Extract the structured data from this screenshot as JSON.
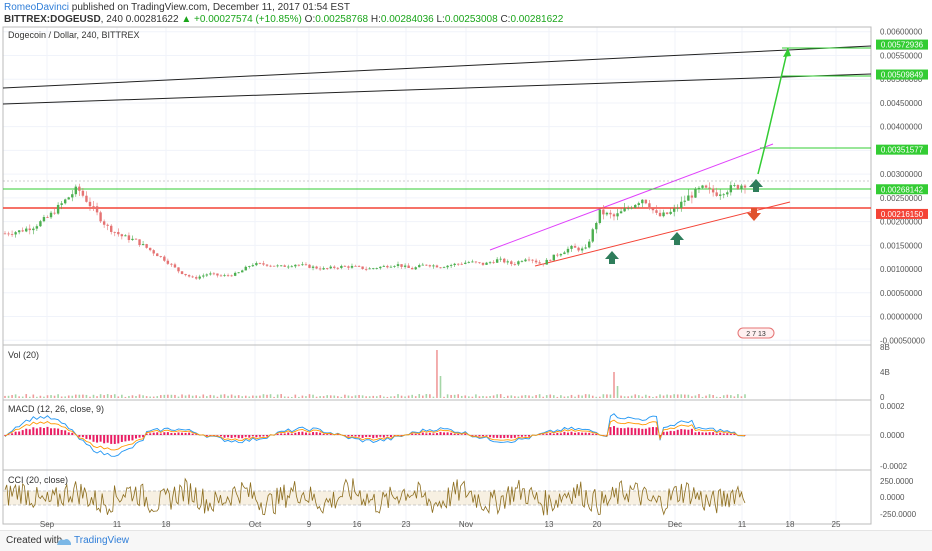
{
  "header": {
    "author": "RomeoDavinci",
    "published": " published on TradingView.com, December 11, 2017 01:54 EST",
    "symbol": "BITTREX:DOGEUSD",
    "interval": "240",
    "last": "0.00281622",
    "change": "+0.00027574 (+10.85%)",
    "open_label": "O:",
    "open": "0.00258768",
    "high_label": "H:",
    "high": "0.00284036",
    "low_label": "L:",
    "low": "0.00253008",
    "close_label": "C:",
    "close": "0.00281622"
  },
  "pane_titles": {
    "main": "Dogecoin / Dollar, 240, BITTREX",
    "vol": "Vol (20)",
    "macd": "MACD (12, 26, close, 9)",
    "cci": "CCI (20, close)"
  },
  "footer": {
    "created_with": "Created with",
    "brand": "TradingView"
  },
  "colors": {
    "up": "#4caf50",
    "down": "#e57373",
    "accent": "#2f7ed8",
    "magenta": "#e040fb",
    "red": "#f44336",
    "green": "#33cc33"
  },
  "chart_data": {
    "type": "line",
    "title": "Dogecoin / Dollar, 240, BITTREX",
    "x_ticks": [
      "Sep",
      "11",
      "18",
      "Oct",
      "9",
      "16",
      "23",
      "Nov",
      "13",
      "20",
      "Dec",
      "11",
      "18",
      "25"
    ],
    "price_axis": {
      "ticks": [
        "0.00600000",
        "0.00550000",
        "0.00500000",
        "0.00450000",
        "0.00400000",
        "0.00350000",
        "0.00300000",
        "0.00250000",
        "0.00200000",
        "0.00150000",
        "0.00100000",
        "0.00050000",
        "0.00000000",
        "-0.00050000"
      ],
      "ylim": [
        -0.0006,
        0.0061
      ]
    },
    "price_labels": [
      {
        "text": "0.00572936",
        "value": 0.00572936,
        "color": "#33cc33"
      },
      {
        "text": "0.00509849",
        "value": 0.00509849,
        "color": "#33cc33"
      },
      {
        "text": "0.00351577",
        "value": 0.00351577,
        "color": "#33cc33"
      },
      {
        "text": "0.00268142",
        "value": 0.00268142,
        "color": "#33cc33"
      },
      {
        "text": "0.00216150",
        "value": 0.0021615,
        "color": "#f44336"
      }
    ],
    "series": [
      {
        "values": [
          0.00175,
          0.0018,
          0.0019,
          0.0021,
          0.0024,
          0.0027,
          0.0023,
          0.0019,
          0.0017,
          0.0016,
          0.0014,
          0.0012,
          0.00095,
          0.0008,
          0.0009,
          0.00085,
          0.0009,
          0.0011,
          0.0011,
          0.00105,
          0.0011,
          0.00105,
          0.001,
          0.00105,
          0.00105,
          0.001,
          0.00105,
          0.0011,
          0.001,
          0.0011,
          0.00105,
          0.0011,
          0.00115,
          0.0011,
          0.0012,
          0.0011,
          0.00125,
          0.0011,
          0.0013,
          0.00145,
          0.0014,
          0.0022,
          0.0021,
          0.0023,
          0.0025,
          0.0021,
          0.0022,
          0.0025,
          0.0027,
          0.0026,
          0.0027,
          0.0028
        ]
      }
    ],
    "volume_axis": {
      "ticks": [
        "8B",
        "4B",
        "0"
      ]
    },
    "macd_axis": {
      "ticks": [
        "0.0002",
        "0.0000",
        "-0.0002"
      ]
    },
    "cci_axis": {
      "ticks": [
        "250.0000",
        "0.0000",
        "-250.0000"
      ]
    },
    "misc_label": "2 7 13"
  }
}
